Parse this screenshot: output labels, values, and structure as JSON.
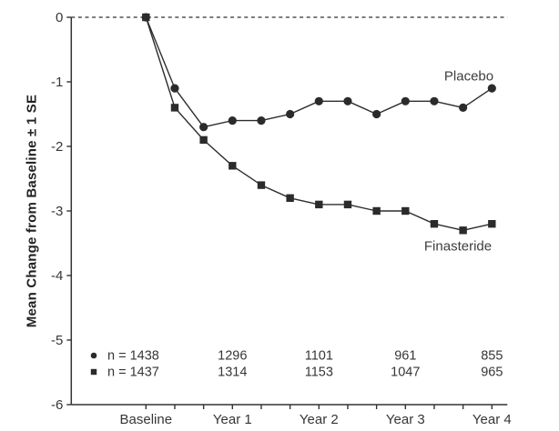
{
  "figure": {
    "background": "#ffffff"
  },
  "chart_data": {
    "type": "line",
    "title": "",
    "xlabel": "",
    "ylabel": "Mean Change from Baseline ± 1 SE",
    "ylim": [
      -6,
      0
    ],
    "y_ticks": [
      0,
      -1,
      -2,
      -3,
      -4,
      -5,
      -6
    ],
    "x_months": [
      0,
      4,
      8,
      12,
      16,
      20,
      24,
      28,
      32,
      36,
      40,
      44,
      48
    ],
    "x_tick_labels": [
      {
        "month": 0,
        "label": "Baseline"
      },
      {
        "month": 12,
        "label": "Year 1"
      },
      {
        "month": 24,
        "label": "Year 2"
      },
      {
        "month": 36,
        "label": "Year 3"
      },
      {
        "month": 48,
        "label": "Year 4"
      }
    ],
    "zero_reference_line": "dashed",
    "grid": "off",
    "legend_position": "inline-labels",
    "series": [
      {
        "name": "Placebo",
        "marker": "circle",
        "values": [
          0,
          -1.1,
          -1.7,
          -1.6,
          -1.6,
          -1.5,
          -1.3,
          -1.3,
          -1.5,
          -1.3,
          -1.3,
          -1.4,
          -1.1
        ],
        "n_label": "n = 1438",
        "n_counts": [
          "1296",
          "1101",
          "961",
          "855"
        ],
        "n_count_months": [
          12,
          24,
          36,
          48
        ]
      },
      {
        "name": "Finasteride",
        "marker": "square",
        "values": [
          0,
          -1.4,
          -1.9,
          -2.3,
          -2.6,
          -2.8,
          -2.9,
          -2.9,
          -3.0,
          -3.0,
          -3.2,
          -3.3,
          -3.2
        ],
        "n_label": "n = 1437",
        "n_counts": [
          "1314",
          "1153",
          "1047",
          "965"
        ],
        "n_count_months": [
          12,
          24,
          36,
          48
        ]
      }
    ],
    "colors": {
      "line": "#2d2d2d",
      "marker": "#2b2b2b",
      "axis": "#333333",
      "text": "#363636"
    }
  }
}
